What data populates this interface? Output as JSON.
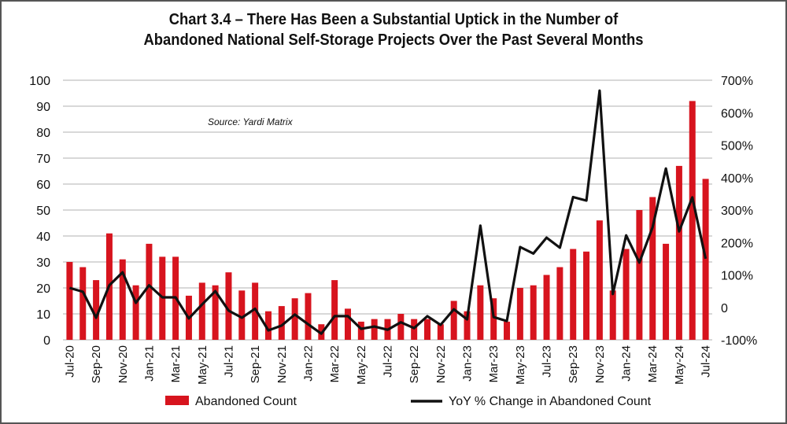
{
  "chart_data": {
    "type": "bar+line",
    "title_line1": "Chart 3.4 – There Has Been a Substantial Uptick in the Number of",
    "title_line2": "Abandoned National Self-Storage Projects Over the Past Several Months",
    "source": "Source: Yardi Matrix",
    "categories": [
      "Jul-20",
      "Aug-20",
      "Sep-20",
      "Oct-20",
      "Nov-20",
      "Dec-20",
      "Jan-21",
      "Feb-21",
      "Mar-21",
      "Apr-21",
      "May-21",
      "Jun-21",
      "Jul-21",
      "Aug-21",
      "Sep-21",
      "Oct-21",
      "Nov-21",
      "Dec-21",
      "Jan-22",
      "Feb-22",
      "Mar-22",
      "Apr-22",
      "May-22",
      "Jun-22",
      "Jul-22",
      "Aug-22",
      "Sep-22",
      "Oct-22",
      "Nov-22",
      "Dec-22",
      "Jan-23",
      "Feb-23",
      "Mar-23",
      "Apr-23",
      "May-23",
      "Jun-23",
      "Jul-23",
      "Aug-23",
      "Sep-23",
      "Oct-23",
      "Nov-23",
      "Dec-23",
      "Jan-24",
      "Feb-24",
      "Mar-24",
      "Apr-24",
      "May-24",
      "Jun-24",
      "Jul-24"
    ],
    "series": [
      {
        "name": "Abandoned Count",
        "type": "bar",
        "axis": "left",
        "color": "#d7141e",
        "values": [
          30,
          28,
          23,
          41,
          31,
          21,
          37,
          32,
          32,
          17,
          22,
          21,
          26,
          19,
          22,
          11,
          13,
          16,
          18,
          6,
          23,
          12,
          7,
          8,
          8,
          10,
          8,
          8,
          6,
          15,
          11,
          21,
          16,
          7,
          20,
          21,
          25,
          28,
          35,
          34,
          46,
          19,
          35,
          50,
          55,
          37,
          67,
          92,
          62
        ]
      },
      {
        "name": "YoY % Change in Abandoned Count",
        "type": "line",
        "axis": "right",
        "color": "#111111",
        "values": [
          60,
          48,
          -32,
          68,
          108,
          14,
          68,
          31,
          31,
          -34,
          9,
          50,
          -10,
          -32,
          -4,
          -71,
          -56,
          -22,
          -52,
          -81,
          -27,
          -27,
          -66,
          -59,
          -69,
          -46,
          -64,
          -27,
          -54,
          -6,
          -37,
          252,
          -30,
          -42,
          186,
          166,
          215,
          184,
          340,
          329,
          668,
          41,
          222,
          138,
          247,
          428,
          234,
          339,
          150
        ]
      }
    ],
    "left_axis": {
      "min": 0,
      "max": 100,
      "ticks": [
        "0",
        "10",
        "20",
        "30",
        "40",
        "50",
        "60",
        "70",
        "80",
        "90",
        "100"
      ]
    },
    "right_axis": {
      "min": -100,
      "max": 700,
      "ticks": [
        "-100%",
        "0",
        "100%",
        "200%",
        "300%",
        "400%",
        "500%",
        "600%",
        "700%"
      ]
    },
    "x_tick_every": 2,
    "grid": true,
    "legend_position": "bottom"
  }
}
